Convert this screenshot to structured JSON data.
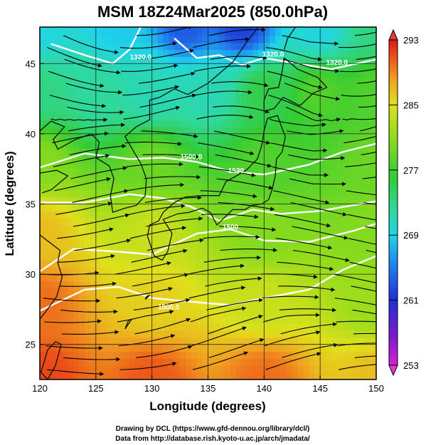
{
  "chart_data": {
    "type": "heatmap",
    "title": "MSM 18Z24Mar2025 (850.0hPa)",
    "xlabel": "Longitude (degrees)",
    "ylabel": "Latitude  (degrees)",
    "xlim": [
      120,
      150
    ],
    "ylim": [
      22.5,
      47.6
    ],
    "x_ticks": [
      120,
      125,
      130,
      135,
      140,
      145,
      150
    ],
    "y_ticks": [
      25,
      30,
      35,
      40,
      45
    ],
    "x_tick_labels": [
      "120",
      "125",
      "130",
      "135",
      "140",
      "145",
      "150"
    ],
    "y_tick_labels": [
      "25",
      "30",
      "35",
      "40",
      "45"
    ],
    "grid": true,
    "colorbar": {
      "min": 253,
      "max": 293,
      "tick_values": [
        293,
        285,
        277,
        269,
        261,
        253
      ],
      "tick_labels": [
        "293",
        "285",
        "277",
        "269",
        "261",
        "253"
      ],
      "colors": [
        "#d81fd0",
        "#7a1ccc",
        "#1f2fd6",
        "#1f8cf0",
        "#1fd6e8",
        "#30d89a",
        "#34cc34",
        "#8fdc1c",
        "#e0e01c",
        "#f0a020",
        "#ec5018",
        "#d81818"
      ]
    },
    "temperature_points": [
      {
        "lon": 120,
        "lat": 47.6,
        "value": 268
      },
      {
        "lon": 127,
        "lat": 47.6,
        "value": 267
      },
      {
        "lon": 133,
        "lat": 47.6,
        "value": 262
      },
      {
        "lon": 138,
        "lat": 47.6,
        "value": 261
      },
      {
        "lon": 145,
        "lat": 47.6,
        "value": 268
      },
      {
        "lon": 150,
        "lat": 47.6,
        "value": 272
      },
      {
        "lon": 120,
        "lat": 43,
        "value": 272
      },
      {
        "lon": 125,
        "lat": 43,
        "value": 271
      },
      {
        "lon": 130,
        "lat": 43,
        "value": 270
      },
      {
        "lon": 135,
        "lat": 43,
        "value": 270
      },
      {
        "lon": 140,
        "lat": 43,
        "value": 274
      },
      {
        "lon": 145,
        "lat": 43,
        "value": 276
      },
      {
        "lon": 150,
        "lat": 43,
        "value": 276
      },
      {
        "lon": 120,
        "lat": 38,
        "value": 278
      },
      {
        "lon": 130,
        "lat": 38,
        "value": 277
      },
      {
        "lon": 140,
        "lat": 38,
        "value": 276
      },
      {
        "lon": 150,
        "lat": 38,
        "value": 277
      },
      {
        "lon": 120,
        "lat": 33,
        "value": 284
      },
      {
        "lon": 130,
        "lat": 33,
        "value": 281
      },
      {
        "lon": 140,
        "lat": 33,
        "value": 278
      },
      {
        "lon": 150,
        "lat": 33,
        "value": 278
      },
      {
        "lon": 120,
        "lat": 28,
        "value": 288
      },
      {
        "lon": 130,
        "lat": 28,
        "value": 283
      },
      {
        "lon": 140,
        "lat": 28,
        "value": 281
      },
      {
        "lon": 150,
        "lat": 28,
        "value": 279
      },
      {
        "lon": 120,
        "lat": 22.5,
        "value": 290
      },
      {
        "lon": 130,
        "lat": 22.5,
        "value": 289
      },
      {
        "lon": 140,
        "lat": 22.5,
        "value": 288
      },
      {
        "lon": 150,
        "lat": 22.5,
        "value": 284
      }
    ],
    "contour_labels": [
      {
        "text": "1320.0",
        "lon": 129,
        "lat": 45.3
      },
      {
        "text": "1320.0",
        "lon": 140.8,
        "lat": 45.5
      },
      {
        "text": "1320.0",
        "lon": 146.5,
        "lat": 44.9
      },
      {
        "text": "1500.0",
        "lon": 133.5,
        "lat": 38.2
      },
      {
        "text": "1530",
        "lon": 137.5,
        "lat": 37.2
      },
      {
        "text": "1500",
        "lon": 137,
        "lat": 33.2
      },
      {
        "text": "1500.0",
        "lon": 131.5,
        "lat": 27.5
      }
    ]
  },
  "footer": {
    "line1": "Drawing by DCL (https://www.gfd-dennou.org/library/dcl/)",
    "line2": "Data from http://database.rish.kyoto-u.ac.jp/arch/jmadata/"
  }
}
